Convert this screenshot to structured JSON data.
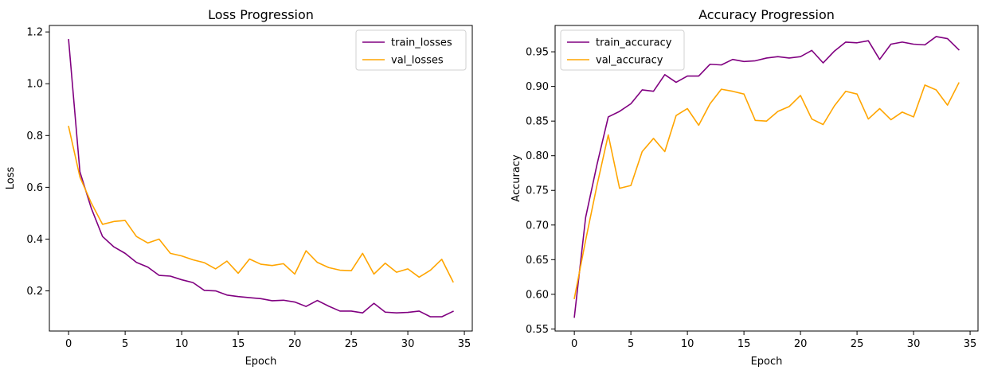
{
  "chart_data": [
    {
      "type": "line",
      "title": "Loss Progression",
      "xlabel": "Epoch",
      "ylabel": "Loss",
      "xlim": [
        -1.7,
        35.7
      ],
      "ylim": [
        0.045,
        1.225
      ],
      "xticks": [
        0,
        5,
        10,
        15,
        20,
        25,
        30,
        35
      ],
      "yticks": [
        0.2,
        0.4,
        0.6,
        0.8,
        1.0,
        1.2
      ],
      "ytick_labels": [
        "0.2",
        "0.4",
        "0.6",
        "0.8",
        "1.0",
        "1.2"
      ],
      "grid": false,
      "legend_position": "top-right",
      "x": [
        0,
        1,
        2,
        3,
        4,
        5,
        6,
        7,
        8,
        9,
        10,
        11,
        12,
        13,
        14,
        15,
        16,
        17,
        18,
        19,
        20,
        21,
        22,
        23,
        24,
        25,
        26,
        27,
        28,
        29,
        30,
        31,
        32,
        33,
        34
      ],
      "series": [
        {
          "name": "train_losses",
          "color": "#800080",
          "values": [
            1.17,
            0.66,
            0.52,
            0.41,
            0.37,
            0.345,
            0.31,
            0.292,
            0.26,
            0.257,
            0.243,
            0.232,
            0.202,
            0.2,
            0.184,
            0.178,
            0.174,
            0.17,
            0.162,
            0.164,
            0.157,
            0.14,
            0.163,
            0.141,
            0.122,
            0.122,
            0.115,
            0.152,
            0.118,
            0.115,
            0.117,
            0.122,
            0.1,
            0.1,
            0.121
          ]
        },
        {
          "name": "val_losses",
          "color": "#FFA500",
          "values": [
            0.835,
            0.64,
            0.54,
            0.457,
            0.468,
            0.472,
            0.41,
            0.385,
            0.4,
            0.345,
            0.335,
            0.32,
            0.309,
            0.285,
            0.315,
            0.268,
            0.323,
            0.303,
            0.298,
            0.305,
            0.265,
            0.355,
            0.31,
            0.29,
            0.28,
            0.278,
            0.345,
            0.265,
            0.307,
            0.272,
            0.285,
            0.253,
            0.28,
            0.322,
            0.235
          ]
        }
      ]
    },
    {
      "type": "line",
      "title": "Accuracy Progression",
      "xlabel": "Epoch",
      "ylabel": "Accuracy",
      "xlim": [
        -1.7,
        35.7
      ],
      "ylim": [
        0.547,
        0.988
      ],
      "xticks": [
        0,
        5,
        10,
        15,
        20,
        25,
        30,
        35
      ],
      "yticks": [
        0.55,
        0.6,
        0.65,
        0.7,
        0.75,
        0.8,
        0.85,
        0.9,
        0.95
      ],
      "ytick_labels": [
        "0.55",
        "0.60",
        "0.65",
        "0.70",
        "0.75",
        "0.80",
        "0.85",
        "0.90",
        "0.95"
      ],
      "grid": false,
      "legend_position": "top-left",
      "x": [
        0,
        1,
        2,
        3,
        4,
        5,
        6,
        7,
        8,
        9,
        10,
        11,
        12,
        13,
        14,
        15,
        16,
        17,
        18,
        19,
        20,
        21,
        22,
        23,
        24,
        25,
        26,
        27,
        28,
        29,
        30,
        31,
        32,
        33,
        34
      ],
      "series": [
        {
          "name": "train_accuracy",
          "color": "#800080",
          "values": [
            0.567,
            0.711,
            0.787,
            0.856,
            0.864,
            0.875,
            0.895,
            0.893,
            0.917,
            0.906,
            0.915,
            0.915,
            0.932,
            0.931,
            0.939,
            0.936,
            0.937,
            0.941,
            0.943,
            0.941,
            0.943,
            0.952,
            0.934,
            0.951,
            0.964,
            0.963,
            0.966,
            0.939,
            0.961,
            0.964,
            0.961,
            0.96,
            0.972,
            0.969,
            0.953
          ]
        },
        {
          "name": "val_accuracy",
          "color": "#FFA500",
          "values": [
            0.594,
            0.678,
            0.757,
            0.83,
            0.753,
            0.757,
            0.806,
            0.825,
            0.806,
            0.858,
            0.868,
            0.844,
            0.875,
            0.896,
            0.893,
            0.889,
            0.851,
            0.85,
            0.864,
            0.871,
            0.887,
            0.853,
            0.845,
            0.872,
            0.893,
            0.889,
            0.853,
            0.868,
            0.852,
            0.863,
            0.856,
            0.902,
            0.895,
            0.873,
            0.905
          ]
        }
      ]
    }
  ]
}
